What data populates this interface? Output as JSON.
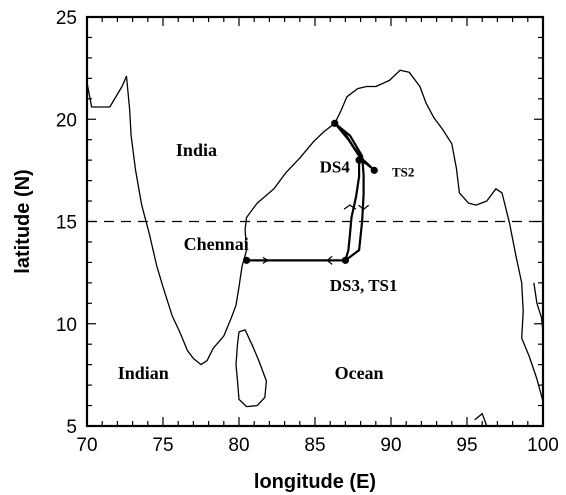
{
  "map": {
    "x_axis": {
      "label": "longitude (E)",
      "range": [
        70,
        100
      ],
      "ticks": [
        "70",
        "75",
        "80",
        "85",
        "90",
        "95",
        "100"
      ]
    },
    "y_axis": {
      "label": "latitude (N)",
      "range": [
        5,
        25
      ],
      "ticks": [
        "5",
        "10",
        "15",
        "20",
        "25"
      ]
    },
    "reference_line": {
      "latitude": 15,
      "style": "dashed"
    },
    "labels": {
      "india": "India",
      "chennai": "Chennai",
      "ds4": "DS4",
      "ts2": "TS2",
      "ds3_ts1": "DS3, TS1",
      "indian": "Indian",
      "ocean": "Ocean"
    },
    "locations": {
      "chennai": {
        "lon": 80.5,
        "lat": 13.1
      },
      "ds3_ts1": {
        "lon": 87.0,
        "lat": 13.1
      },
      "ds4": {
        "lon": 87.9,
        "lat": 18.0
      },
      "ts2": {
        "lon": 88.9,
        "lat": 17.5
      },
      "northern_point": {
        "lon": 86.3,
        "lat": 19.8
      }
    },
    "colors": {
      "coast": "#000000",
      "track": "#000000",
      "background": "#ffffff"
    }
  }
}
